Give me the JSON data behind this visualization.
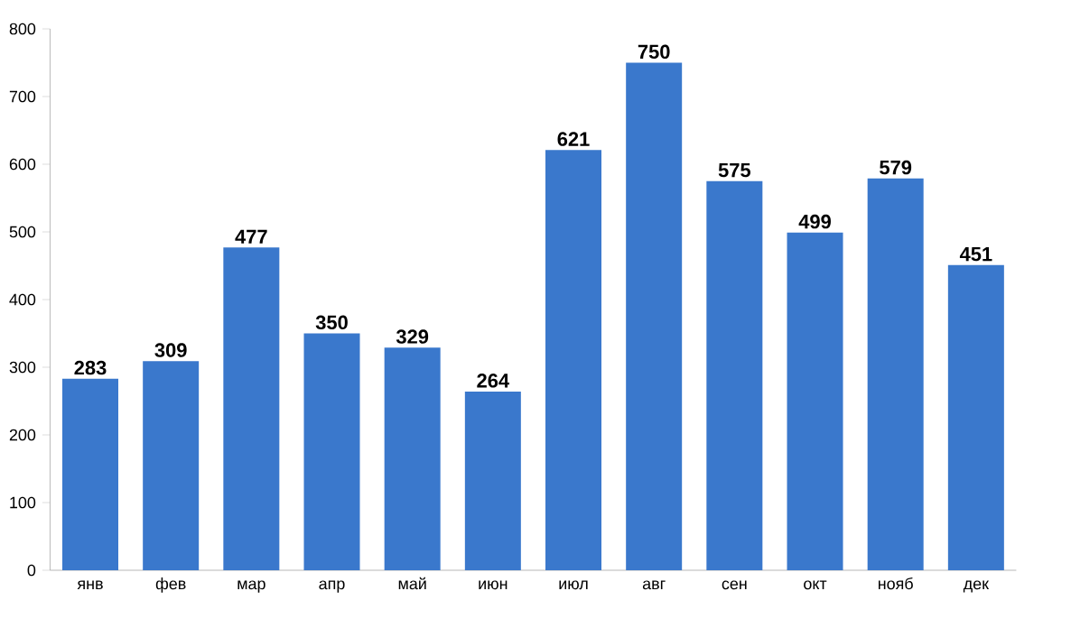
{
  "chart_data": {
    "type": "bar",
    "categories": [
      "янв",
      "фев",
      "мар",
      "апр",
      "май",
      "июн",
      "июл",
      "авг",
      "сен",
      "окт",
      "нояб",
      "дек"
    ],
    "values": [
      283,
      309,
      477,
      350,
      329,
      264,
      621,
      750,
      575,
      499,
      579,
      451
    ],
    "color": "#3a78cc",
    "ylim": [
      0,
      800
    ],
    "yticks": [
      0,
      100,
      200,
      300,
      400,
      500,
      600,
      700,
      800
    ],
    "data_labels": true
  }
}
